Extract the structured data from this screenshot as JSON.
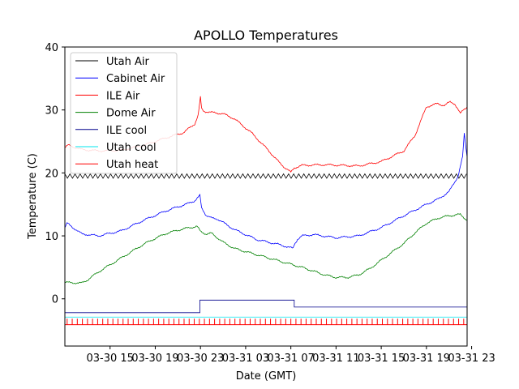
{
  "chart_data": {
    "type": "line",
    "title": "APOLLO Temperatures",
    "xlabel": "Date (GMT)",
    "ylabel": "Temperature (C)",
    "x_unit": "hours since 03-30 11 GMT",
    "xlim": [
      0,
      35.6
    ],
    "ylim": [
      -7.5,
      40
    ],
    "grid": false,
    "legend_position": "upper-left",
    "xticks": [
      {
        "x": 4,
        "label": "03-30 15"
      },
      {
        "x": 8,
        "label": "03-30 19"
      },
      {
        "x": 12,
        "label": "03-30 23"
      },
      {
        "x": 16,
        "label": "03-31 03"
      },
      {
        "x": 20,
        "label": "03-31 07"
      },
      {
        "x": 24,
        "label": "03-31 11"
      },
      {
        "x": 28,
        "label": "03-31 15"
      },
      {
        "x": 32,
        "label": "03-31 19"
      },
      {
        "x": 36,
        "label": "03-31 23"
      }
    ],
    "yticks": [
      {
        "y": 0,
        "label": "0"
      },
      {
        "y": 10,
        "label": "10"
      },
      {
        "y": 20,
        "label": "20"
      },
      {
        "y": 30,
        "label": "30"
      },
      {
        "y": 40,
        "label": "40"
      }
    ],
    "series": [
      {
        "name": "Utah Air",
        "color": "#000000",
        "style": "sawtooth",
        "x": [
          0,
          35.6
        ],
        "y": [
          19.5,
          19.5
        ],
        "amplitude": 0.35,
        "period": 0.45
      },
      {
        "name": "Cabinet Air",
        "color": "#0000ff",
        "style": "line",
        "x": [
          0,
          0.2,
          1.5,
          3,
          5,
          7,
          9,
          11,
          11.5,
          11.95,
          12.1,
          12.5,
          13,
          13.5,
          15,
          17,
          19,
          20.2,
          20.3,
          20.6,
          21,
          22,
          24,
          26,
          28,
          30,
          32,
          33,
          34,
          34.8,
          35.2,
          35.35,
          35.5,
          35.6
        ],
        "y": [
          11.3,
          12,
          10.3,
          10,
          10.8,
          12.5,
          14,
          15.2,
          15.6,
          16.4,
          14.4,
          13.3,
          12.8,
          12.7,
          11,
          9.4,
          8.6,
          8,
          8.6,
          9.5,
          10,
          10.2,
          9.7,
          10,
          11.3,
          13.2,
          15,
          15.8,
          17,
          19.5,
          22.5,
          26.2,
          24,
          22.5
        ]
      },
      {
        "name": "ILE Air",
        "color": "#ff0000",
        "style": "line",
        "x": [
          0,
          0.3,
          1.5,
          3,
          5,
          7,
          9,
          10.5,
          11.5,
          11.8,
          12,
          12.1,
          12.3,
          13,
          14,
          15,
          16.5,
          18,
          19,
          19.5,
          20,
          20.3,
          21,
          23,
          26,
          28,
          30,
          31,
          32,
          33,
          33.6,
          34.1,
          34.5,
          35,
          35.3,
          35.6
        ],
        "y": [
          24,
          24.4,
          23.7,
          23.5,
          23.6,
          24.4,
          25.6,
          26.4,
          27.8,
          29.2,
          32,
          30.2,
          29.8,
          29.6,
          29.4,
          28.6,
          26.4,
          23.6,
          21.6,
          20.8,
          20.1,
          20.8,
          21.2,
          21.3,
          21.1,
          21.8,
          23.5,
          26,
          30.5,
          31,
          30.7,
          31.3,
          31,
          29.4,
          30.1,
          30.5
        ]
      },
      {
        "name": "Dome Air",
        "color": "#008000",
        "style": "line",
        "x": [
          0,
          1.5,
          2,
          3,
          5,
          7,
          8,
          9,
          10,
          11,
          11.7,
          12,
          12.5,
          13,
          14,
          15,
          18,
          20,
          21,
          22,
          23,
          24,
          25,
          26,
          27,
          28.5,
          30,
          31,
          32,
          33,
          34,
          35,
          35.6
        ],
        "y": [
          2.6,
          2.5,
          3,
          4.3,
          6.5,
          8.7,
          9.6,
          10.4,
          10.9,
          11.3,
          11.5,
          10.7,
          10.3,
          10.4,
          9,
          8,
          6.5,
          5.5,
          5,
          4.4,
          3.8,
          3.4,
          3.4,
          3.8,
          4.8,
          6.8,
          8.8,
          10.5,
          12,
          12.8,
          13.2,
          13.4,
          12.5
        ]
      },
      {
        "name": "ILE cool",
        "color": "#00008b",
        "style": "step",
        "x": [
          0,
          11.95,
          11.95,
          20.3,
          20.3,
          35.6
        ],
        "y": [
          -2.2,
          -2.2,
          -0.2,
          -0.2,
          -1.3,
          -1.3
        ]
      },
      {
        "name": "Utah cool",
        "color": "#00e5ee",
        "style": "line",
        "x": [
          0,
          35.6
        ],
        "y": [
          -2.9,
          -2.9
        ]
      },
      {
        "name": "Utah heat",
        "color": "#ff0000",
        "style": "pulses",
        "x": [
          0,
          35.6
        ],
        "base": -4.1,
        "peak": -3.15,
        "period": 0.45
      }
    ]
  }
}
